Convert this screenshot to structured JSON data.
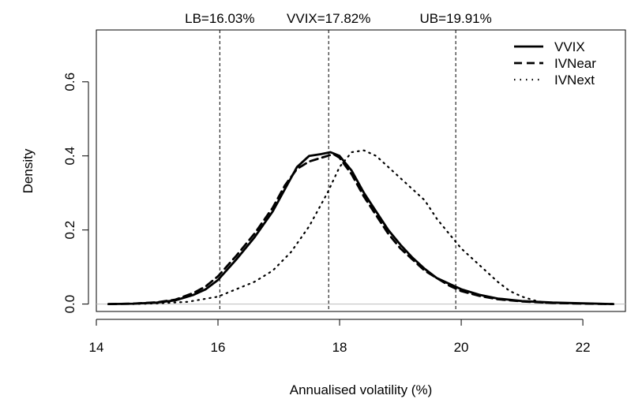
{
  "chart_data": {
    "type": "line",
    "title": "",
    "xlabel": "Annualised volatility (%)",
    "ylabel": "Density",
    "xlim": [
      14,
      22.7
    ],
    "ylim": [
      -0.02,
      0.74
    ],
    "x_ticks": [
      14,
      16,
      18,
      20,
      22
    ],
    "x_tick_labels": [
      "14",
      "16",
      "18",
      "20",
      "22"
    ],
    "y_ticks": [
      0,
      0.2,
      0.4,
      0.6
    ],
    "y_tick_labels": [
      "0.0",
      "0.2",
      "0.4",
      "0.6"
    ],
    "legend_position": "top-right",
    "series": [
      {
        "name": "VVIX",
        "style": "solid",
        "x": [
          14.2,
          14.6,
          15.0,
          15.3,
          15.6,
          15.8,
          16.0,
          16.3,
          16.6,
          16.9,
          17.1,
          17.3,
          17.5,
          17.7,
          17.85,
          18.0,
          18.2,
          18.4,
          18.6,
          18.8,
          19.0,
          19.2,
          19.4,
          19.6,
          19.8,
          20.0,
          20.3,
          20.6,
          21.0,
          21.5,
          22.0,
          22.5
        ],
        "y": [
          0.0,
          0.001,
          0.004,
          0.01,
          0.025,
          0.04,
          0.065,
          0.12,
          0.18,
          0.25,
          0.31,
          0.37,
          0.4,
          0.405,
          0.41,
          0.4,
          0.36,
          0.3,
          0.25,
          0.2,
          0.16,
          0.125,
          0.095,
          0.07,
          0.055,
          0.04,
          0.025,
          0.015,
          0.008,
          0.004,
          0.002,
          0.0
        ]
      },
      {
        "name": "IVNear",
        "style": "dashed",
        "x": [
          14.2,
          14.6,
          15.0,
          15.3,
          15.6,
          15.8,
          16.0,
          16.3,
          16.6,
          16.9,
          17.1,
          17.3,
          17.5,
          17.7,
          17.9,
          18.0,
          18.2,
          18.4,
          18.6,
          18.8,
          19.0,
          19.2,
          19.4,
          19.6,
          19.8,
          20.0,
          20.3,
          20.6,
          21.0,
          21.5,
          22.0,
          22.5
        ],
        "y": [
          0.0,
          0.001,
          0.005,
          0.012,
          0.03,
          0.048,
          0.075,
          0.13,
          0.19,
          0.26,
          0.32,
          0.365,
          0.385,
          0.395,
          0.405,
          0.395,
          0.35,
          0.29,
          0.24,
          0.19,
          0.15,
          0.12,
          0.09,
          0.07,
          0.05,
          0.035,
          0.022,
          0.013,
          0.007,
          0.003,
          0.001,
          0.0
        ]
      },
      {
        "name": "IVNext",
        "style": "dotted",
        "x": [
          14.6,
          15.0,
          15.5,
          16.0,
          16.3,
          16.6,
          16.9,
          17.2,
          17.5,
          17.8,
          18.0,
          18.2,
          18.4,
          18.6,
          18.8,
          19.0,
          19.2,
          19.4,
          19.6,
          19.8,
          20.0,
          20.2,
          20.4,
          20.6,
          20.8,
          21.0,
          21.2,
          21.4
        ],
        "y": [
          0.0,
          0.002,
          0.006,
          0.02,
          0.04,
          0.06,
          0.09,
          0.14,
          0.21,
          0.3,
          0.37,
          0.41,
          0.415,
          0.4,
          0.37,
          0.34,
          0.31,
          0.28,
          0.23,
          0.19,
          0.15,
          0.12,
          0.09,
          0.06,
          0.035,
          0.02,
          0.01,
          0.003
        ]
      }
    ],
    "reference_lines": [
      {
        "label": "LB=16.03%",
        "x": 16.03
      },
      {
        "label": "VVIX=17.82%",
        "x": 17.82
      },
      {
        "label": "UB=19.91%",
        "x": 19.91
      }
    ],
    "baseline": {
      "y": 0,
      "color": "#bdbdbd"
    }
  }
}
